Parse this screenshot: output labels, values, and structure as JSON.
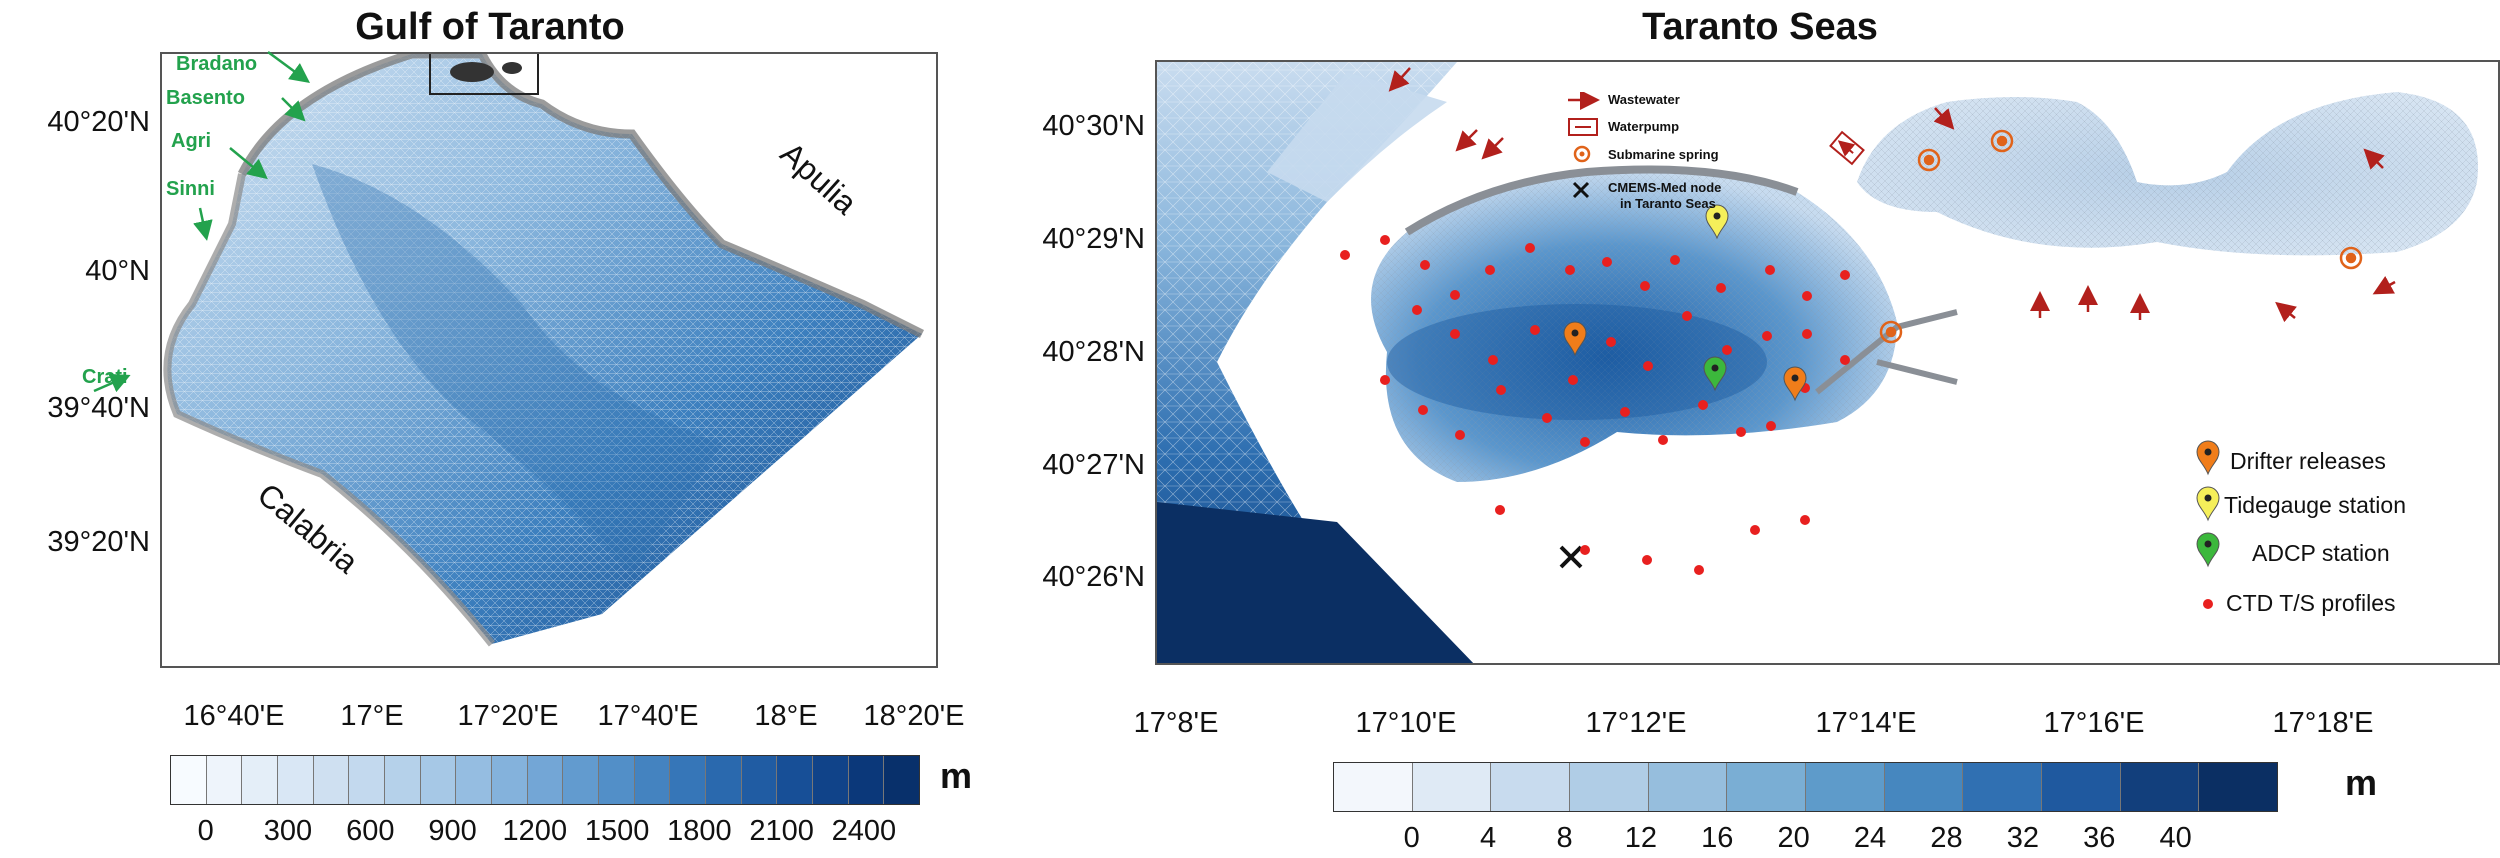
{
  "left_panel": {
    "title": "Gulf of Taranto",
    "lat_labels": [
      "40°20'N",
      "40°N",
      "39°40'N",
      "39°20'N"
    ],
    "lon_labels": [
      "16°40'E",
      "17°E",
      "17°20'E",
      "17°40'E",
      "18°E",
      "18°20'E"
    ],
    "rivers": [
      "Bradano",
      "Basento",
      "Agri",
      "Sinni",
      "Crati"
    ],
    "regions": [
      "Apulia",
      "Calabria"
    ],
    "colorbar": {
      "ticks": [
        "0",
        "300",
        "600",
        "900",
        "1200",
        "1500",
        "1800",
        "2100",
        "2400"
      ],
      "unit": "m",
      "colors": [
        "#f7fbff",
        "#eef4fb",
        "#e4eef8",
        "#d9e7f5",
        "#cfe0f1",
        "#c3d9ee",
        "#b5d1ea",
        "#a6c8e6",
        "#95bde1",
        "#84b2dc",
        "#73a6d6",
        "#629bcf",
        "#528fc8",
        "#4483c0",
        "#3676b8",
        "#2a69ae",
        "#205ca3",
        "#174f97",
        "#104389",
        "#0b387a",
        "#08306b"
      ]
    }
  },
  "right_panel": {
    "title": "Taranto Seas",
    "lat_labels": [
      "40°30'N",
      "40°29'N",
      "40°28'N",
      "40°27'N",
      "40°26'N"
    ],
    "lon_labels": [
      "17°8'E",
      "17°10'E",
      "17°12'E",
      "17°14'E",
      "17°16'E",
      "17°18'E"
    ],
    "top_legend": [
      "Wastewater",
      "Waterpump",
      "Submarine spring",
      "CMEMS-Med node",
      "in Taranto Seas"
    ],
    "legend": [
      "Drifter releases",
      "Tidegauge station",
      "ADCP station",
      "CTD T/S profiles"
    ],
    "legend_colors": {
      "drifter": "#f07d1a",
      "tidegauge": "#f5ef5a",
      "adcp": "#3cb83c",
      "ctd": "#e8201f"
    },
    "colorbar": {
      "ticks": [
        "0",
        "4",
        "8",
        "12",
        "16",
        "20",
        "24",
        "28",
        "32",
        "36",
        "40"
      ],
      "unit": "m",
      "colors": [
        "#f3f7fc",
        "#dfeaf5",
        "#c8dbee",
        "#b0cde6",
        "#96bedd",
        "#7aaed4",
        "#5e9bca",
        "#4687bf",
        "#3070b2",
        "#1f599f",
        "#123f7c",
        "#0b2f63"
      ]
    }
  }
}
